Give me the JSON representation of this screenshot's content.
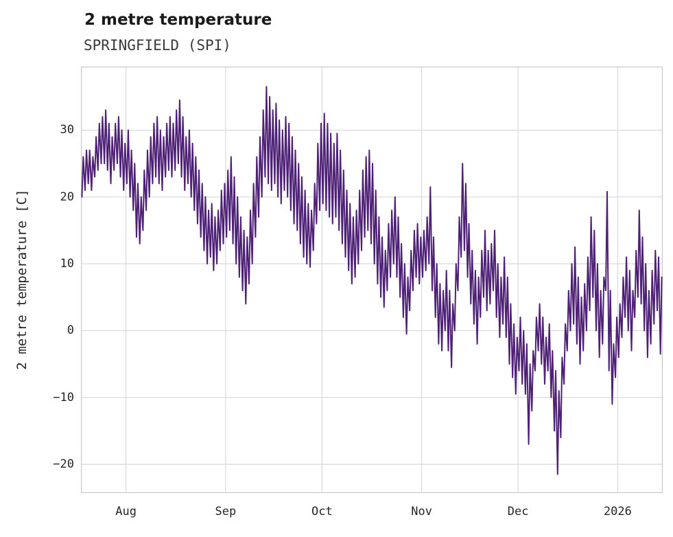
{
  "header": {
    "title": "2 metre temperature",
    "subtitle": "SPRINGFIELD (SPI)"
  },
  "chart_data": {
    "type": "line",
    "title": "2 metre temperature",
    "subtitle": "SPRINGFIELD (SPI)",
    "ylabel": "2 metre temperature [C]",
    "xlabel": "",
    "ylim": [
      -24.3,
      39.5
    ],
    "yticks": [
      -20,
      -10,
      0,
      10,
      20,
      30
    ],
    "xticks": [
      {
        "label": "Aug",
        "day": 14
      },
      {
        "label": "Sep",
        "day": 45
      },
      {
        "label": "Oct",
        "day": 75
      },
      {
        "label": "Nov",
        "day": 106
      },
      {
        "label": "Dec",
        "day": 136
      },
      {
        "label": "2026",
        "day": 167
      }
    ],
    "total_days": 181,
    "grid": true,
    "legend": "none",
    "colors": {
      "line": "#4e2176",
      "grid": "#d9d9d9",
      "spine": "#c9c9c9",
      "text": "#262626"
    },
    "series_name": "2 metre temperature [C]",
    "daily_min_max": [
      [
        20,
        26
      ],
      [
        21,
        27
      ],
      [
        22,
        27
      ],
      [
        21,
        26
      ],
      [
        23,
        29
      ],
      [
        24,
        31
      ],
      [
        25,
        32
      ],
      [
        25,
        33
      ],
      [
        24,
        31
      ],
      [
        22,
        29
      ],
      [
        24,
        31
      ],
      [
        25,
        32
      ],
      [
        23,
        30
      ],
      [
        21,
        28
      ],
      [
        22,
        30
      ],
      [
        20,
        27
      ],
      [
        18,
        25
      ],
      [
        14,
        22
      ],
      [
        13,
        20
      ],
      [
        15,
        24
      ],
      [
        18,
        27
      ],
      [
        20,
        29
      ],
      [
        22,
        31
      ],
      [
        23,
        32
      ],
      [
        22,
        30
      ],
      [
        21,
        29
      ],
      [
        23,
        31
      ],
      [
        24,
        32
      ],
      [
        23,
        31
      ],
      [
        24,
        33
      ],
      [
        25,
        34.5
      ],
      [
        23,
        32
      ],
      [
        21,
        29
      ],
      [
        22,
        30
      ],
      [
        20,
        28
      ],
      [
        18,
        26
      ],
      [
        16,
        24
      ],
      [
        14,
        22
      ],
      [
        12,
        20
      ],
      [
        10,
        18
      ],
      [
        11,
        19
      ],
      [
        9,
        17
      ],
      [
        10,
        18
      ],
      [
        12,
        21
      ],
      [
        13,
        22
      ],
      [
        14,
        24
      ],
      [
        15,
        26
      ],
      [
        13,
        23
      ],
      [
        10,
        20
      ],
      [
        8,
        17
      ],
      [
        6,
        15
      ],
      [
        4,
        14
      ],
      [
        7,
        18
      ],
      [
        10,
        22
      ],
      [
        14,
        26
      ],
      [
        17,
        29
      ],
      [
        20,
        33
      ],
      [
        23,
        36.5
      ],
      [
        22,
        35
      ],
      [
        21,
        33
      ],
      [
        22,
        34
      ],
      [
        20,
        31.5
      ],
      [
        19,
        30
      ],
      [
        21,
        32
      ],
      [
        20,
        31
      ],
      [
        18,
        29
      ],
      [
        16,
        27
      ],
      [
        15,
        25
      ],
      [
        13,
        23
      ],
      [
        11,
        21
      ],
      [
        10,
        19
      ],
      [
        9.5,
        18
      ],
      [
        12,
        22
      ],
      [
        16,
        28
      ],
      [
        18,
        31
      ],
      [
        19,
        32.5
      ],
      [
        18,
        31
      ],
      [
        17,
        29.5
      ],
      [
        16,
        28
      ],
      [
        17,
        29.5
      ],
      [
        15,
        27
      ],
      [
        13,
        24
      ],
      [
        11,
        21
      ],
      [
        9,
        19
      ],
      [
        7,
        17
      ],
      [
        8,
        18
      ],
      [
        10,
        21
      ],
      [
        12,
        24
      ],
      [
        14,
        26
      ],
      [
        15,
        27
      ],
      [
        13,
        25
      ],
      [
        10,
        21
      ],
      [
        7,
        17
      ],
      [
        5,
        14
      ],
      [
        3.5,
        12
      ],
      [
        6,
        16
      ],
      [
        8,
        18
      ],
      [
        10,
        20
      ],
      [
        8,
        17
      ],
      [
        5,
        13
      ],
      [
        2,
        10
      ],
      [
        -0.5,
        8
      ],
      [
        3,
        12
      ],
      [
        6,
        15
      ],
      [
        8,
        16
      ],
      [
        7,
        14
      ],
      [
        8,
        15
      ],
      [
        9,
        17
      ],
      [
        10,
        21.5
      ],
      [
        6,
        14
      ],
      [
        2,
        10
      ],
      [
        -2,
        7
      ],
      [
        -3,
        6
      ],
      [
        0,
        9
      ],
      [
        -3,
        6
      ],
      [
        -5.5,
        4
      ],
      [
        0,
        10
      ],
      [
        6,
        17
      ],
      [
        11,
        25
      ],
      [
        12,
        22
      ],
      [
        8,
        16
      ],
      [
        4,
        12
      ],
      [
        1,
        9
      ],
      [
        -2,
        8
      ],
      [
        2,
        12
      ],
      [
        5,
        15
      ],
      [
        3,
        12
      ],
      [
        4,
        13
      ],
      [
        6,
        15
      ],
      [
        2,
        10
      ],
      [
        -1,
        8
      ],
      [
        1,
        11
      ],
      [
        -1,
        8
      ],
      [
        -5,
        4
      ],
      [
        -7,
        1
      ],
      [
        -9.5,
        -1
      ],
      [
        -6,
        2
      ],
      [
        -8,
        0
      ],
      [
        -9.5,
        -2
      ],
      [
        -17,
        -5
      ],
      [
        -12,
        -3
      ],
      [
        -6,
        2
      ],
      [
        -3,
        4
      ],
      [
        -5,
        2
      ],
      [
        -8,
        -1
      ],
      [
        -6,
        1
      ],
      [
        -10,
        -3
      ],
      [
        -15,
        -6
      ],
      [
        -21.5,
        -9
      ],
      [
        -16,
        -4
      ],
      [
        -8,
        1
      ],
      [
        -3,
        6
      ],
      [
        0,
        10
      ],
      [
        1,
        12.5
      ],
      [
        -2,
        8
      ],
      [
        -5,
        5
      ],
      [
        -3,
        7
      ],
      [
        0,
        11
      ],
      [
        3,
        17
      ],
      [
        5,
        15
      ],
      [
        0,
        10
      ],
      [
        -4,
        6
      ],
      [
        -2,
        8
      ],
      [
        6,
        20.8
      ],
      [
        -6,
        6
      ],
      [
        -11,
        -2
      ],
      [
        -7,
        2
      ],
      [
        -4,
        4
      ],
      [
        -1,
        8
      ],
      [
        2,
        11
      ],
      [
        0,
        9
      ],
      [
        -3,
        6
      ],
      [
        2,
        12
      ],
      [
        5,
        18
      ],
      [
        4,
        14
      ],
      [
        0,
        10
      ],
      [
        -4,
        6
      ],
      [
        -2,
        9
      ],
      [
        1,
        12
      ],
      [
        3,
        11
      ],
      [
        -3.5,
        8
      ]
    ]
  }
}
